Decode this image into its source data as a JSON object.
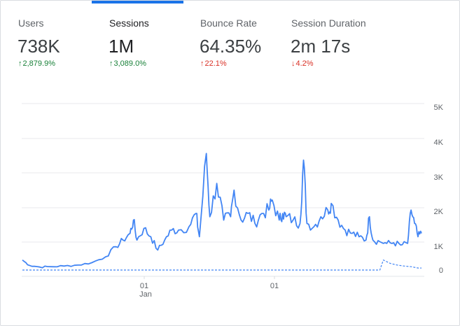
{
  "metrics": [
    {
      "label": "Users",
      "value": "738K",
      "change_arrow": "↑",
      "change": "2,879.9%",
      "change_color": "#188038",
      "active": false
    },
    {
      "label": "Sessions",
      "value": "1M",
      "change_arrow": "↑",
      "change": "3,089.0%",
      "change_color": "#188038",
      "active": true
    },
    {
      "label": "Bounce Rate",
      "value": "64.35%",
      "change_arrow": "↑",
      "change": "22.1%",
      "change_color": "#d93025",
      "active": false
    },
    {
      "label": "Session Duration",
      "value": "2m 17s",
      "change_arrow": "↓",
      "change": "4.2%",
      "change_color": "#d93025",
      "active": false
    }
  ],
  "colors": {
    "accent": "#1a73e8",
    "series": "#4285f4",
    "grid": "#e8eaed"
  },
  "chart_data": {
    "type": "line",
    "y_ticks": [
      "5K",
      "4K",
      "3K",
      "2K",
      "1K",
      "0"
    ],
    "x_ticks": [
      {
        "label": "01",
        "sublabel": "Jan"
      },
      {
        "label": "01",
        "sublabel": ""
      }
    ],
    "ylim": [
      0,
      5000
    ],
    "grid": true,
    "series": [
      {
        "style": "solid",
        "points": [
          [
            0,
            300
          ],
          [
            2,
            140
          ],
          [
            5,
            90
          ],
          [
            8,
            100
          ],
          [
            12,
            120
          ],
          [
            16,
            150
          ],
          [
            20,
            220
          ],
          [
            24,
            400
          ],
          [
            27,
            700
          ],
          [
            29,
            900
          ],
          [
            31,
            1100
          ],
          [
            32,
            1500
          ],
          [
            33,
            900
          ],
          [
            35,
            1250
          ],
          [
            37,
            1000
          ],
          [
            39,
            600
          ],
          [
            41,
            900
          ],
          [
            43,
            1200
          ],
          [
            45,
            1200
          ],
          [
            48,
            1300
          ],
          [
            50,
            1700
          ],
          [
            51,
            1000
          ],
          [
            53,
            3500
          ],
          [
            54,
            1600
          ],
          [
            56,
            2600
          ],
          [
            58,
            1500
          ],
          [
            60,
            1600
          ],
          [
            61,
            2400
          ],
          [
            63,
            1500
          ],
          [
            65,
            1700
          ],
          [
            67,
            1400
          ],
          [
            69,
            1700
          ],
          [
            71,
            1800
          ],
          [
            72,
            2100
          ],
          [
            74,
            1500
          ],
          [
            75,
            1700
          ],
          [
            76,
            1600
          ],
          [
            78,
            1500
          ],
          [
            80,
            1400
          ],
          [
            81,
            3300
          ],
          [
            82,
            1400
          ],
          [
            84,
            1300
          ],
          [
            86,
            1600
          ],
          [
            88,
            1800
          ],
          [
            89,
            2000
          ],
          [
            91,
            1500
          ],
          [
            93,
            1200
          ],
          [
            95,
            1100
          ],
          [
            97,
            1000
          ],
          [
            99,
            900
          ],
          [
            100,
            1600
          ],
          [
            101,
            900
          ],
          [
            103,
            850
          ],
          [
            105,
            800
          ],
          [
            107,
            820
          ],
          [
            109,
            750
          ],
          [
            111,
            800
          ],
          [
            112,
            1800
          ],
          [
            113,
            1400
          ],
          [
            114,
            1000
          ],
          [
            115,
            1100
          ]
        ]
      },
      {
        "style": "dashed",
        "points": [
          [
            0,
            0
          ],
          [
            4,
            0
          ],
          [
            10,
            0
          ],
          [
            20,
            0
          ],
          [
            30,
            0
          ],
          [
            40,
            0
          ],
          [
            50,
            0
          ],
          [
            60,
            0
          ],
          [
            70,
            0
          ],
          [
            80,
            0
          ],
          [
            90,
            0
          ],
          [
            100,
            0
          ],
          [
            103,
            0
          ],
          [
            104,
            300
          ],
          [
            106,
            200
          ],
          [
            108,
            150
          ],
          [
            110,
            120
          ],
          [
            112,
            100
          ],
          [
            114,
            60
          ],
          [
            115,
            60
          ]
        ]
      }
    ]
  }
}
